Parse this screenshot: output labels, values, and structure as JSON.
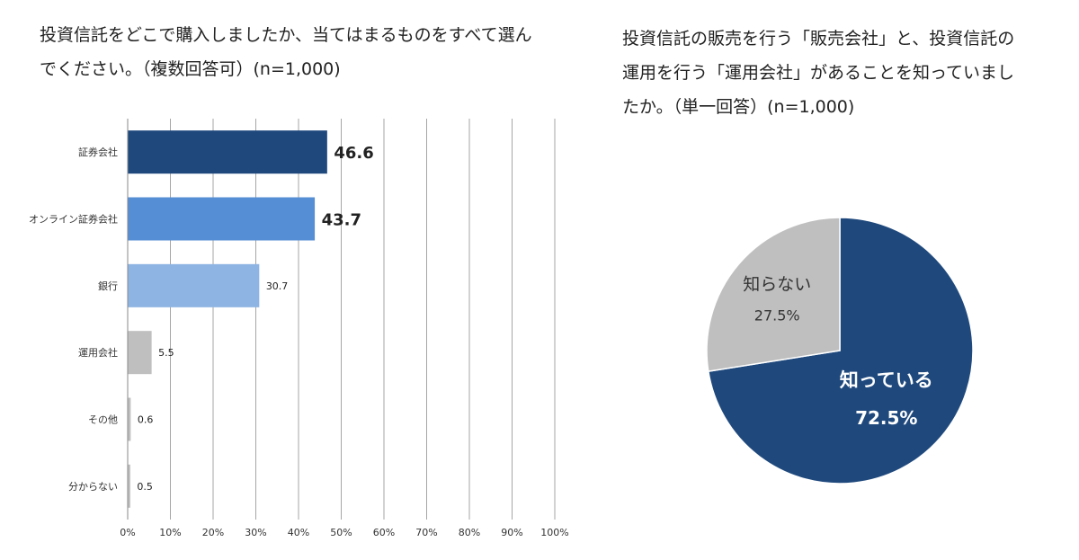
{
  "left": {
    "title_line1": "投資信託をどこで購入しましたか、当てはまるものをすべて選ん",
    "title_line2": "でください。（複数回答可）(n=1,000)"
  },
  "right": {
    "title_line1": "投資信託の販売を行う「販売会社」と、投資信託の",
    "title_line2": "運用を行う「運用会社」があることを知っていまし",
    "title_line3": "たか。（単一回答）(n=1,000)"
  },
  "chart_data": [
    {
      "type": "bar",
      "orientation": "horizontal",
      "categories": [
        "証券会社",
        "オンライン証券会社",
        "銀行",
        "運用会社",
        "その他",
        "分からない"
      ],
      "values": [
        46.6,
        43.7,
        30.7,
        5.5,
        0.6,
        0.5
      ],
      "value_labels": [
        "46.6",
        "43.7",
        "30.7",
        "5.5",
        "0.6",
        "0.5"
      ],
      "colors": [
        "#1f497d",
        "#558ed5",
        "#8eb4e3",
        "#bfbfbf",
        "#bfbfbf",
        "#bfbfbf"
      ],
      "xlim": [
        0,
        100
      ],
      "xticks": [
        "0%",
        "10%",
        "20%",
        "30%",
        "40%",
        "50%",
        "60%",
        "70%",
        "80%",
        "90%",
        "100%"
      ],
      "grid": "vertical"
    },
    {
      "type": "pie",
      "slices": [
        {
          "label": "知っている",
          "value": 72.5,
          "value_label": "72.5%",
          "color": "#1f497d",
          "text_color": "#ffffff"
        },
        {
          "label": "知らない",
          "value": 27.5,
          "value_label": "27.5%",
          "color": "#bfbfbf",
          "text_color": "#333333"
        }
      ]
    }
  ]
}
